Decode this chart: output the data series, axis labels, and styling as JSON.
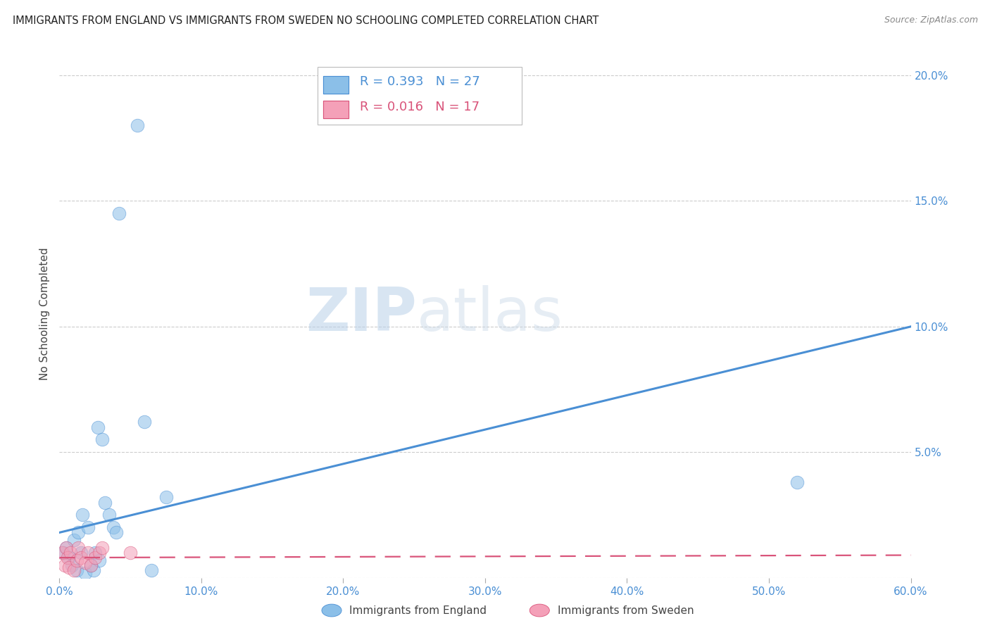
{
  "title": "IMMIGRANTS FROM ENGLAND VS IMMIGRANTS FROM SWEDEN NO SCHOOLING COMPLETED CORRELATION CHART",
  "source": "Source: ZipAtlas.com",
  "ylabel": "No Schooling Completed",
  "xlim": [
    0,
    0.6
  ],
  "ylim": [
    0,
    0.21
  ],
  "xticks": [
    0.0,
    0.1,
    0.2,
    0.3,
    0.4,
    0.5,
    0.6
  ],
  "xticklabels": [
    "0.0%",
    "10.0%",
    "20.0%",
    "30.0%",
    "40.0%",
    "50.0%",
    "60.0%"
  ],
  "ytick_positions": [
    0.0,
    0.05,
    0.1,
    0.15,
    0.2
  ],
  "ytick_labels_right": [
    "",
    "5.0%",
    "10.0%",
    "15.0%",
    "20.0%"
  ],
  "background_color": "#ffffff",
  "watermark_text": "ZIPatlas",
  "england_color": "#8BBFE8",
  "england_color_dark": "#4A8FD4",
  "sweden_color": "#F4A0B8",
  "sweden_color_dark": "#D9547A",
  "england_R": "0.393",
  "england_N": "27",
  "sweden_R": "0.016",
  "sweden_N": "17",
  "england_x": [
    0.003,
    0.005,
    0.007,
    0.009,
    0.01,
    0.012,
    0.013,
    0.015,
    0.016,
    0.018,
    0.02,
    0.022,
    0.024,
    0.025,
    0.027,
    0.028,
    0.03,
    0.032,
    0.035,
    0.038,
    0.04,
    0.042,
    0.055,
    0.06,
    0.065,
    0.075,
    0.52
  ],
  "england_y": [
    0.01,
    0.012,
    0.008,
    0.005,
    0.015,
    0.003,
    0.018,
    0.01,
    0.025,
    0.002,
    0.02,
    0.005,
    0.003,
    0.01,
    0.06,
    0.007,
    0.055,
    0.03,
    0.025,
    0.02,
    0.018,
    0.145,
    0.18,
    0.062,
    0.003,
    0.032,
    0.038
  ],
  "sweden_x": [
    0.002,
    0.004,
    0.005,
    0.006,
    0.007,
    0.008,
    0.01,
    0.012,
    0.013,
    0.015,
    0.018,
    0.02,
    0.022,
    0.025,
    0.028,
    0.03,
    0.05
  ],
  "sweden_y": [
    0.01,
    0.005,
    0.012,
    0.008,
    0.004,
    0.01,
    0.003,
    0.007,
    0.012,
    0.008,
    0.006,
    0.01,
    0.005,
    0.008,
    0.01,
    0.012,
    0.01
  ],
  "england_line_x": [
    0.0,
    0.6
  ],
  "england_line_y": [
    0.018,
    0.1
  ],
  "sweden_line_x": [
    0.0,
    0.6
  ],
  "sweden_line_y": [
    0.008,
    0.009
  ],
  "marker_size": 180,
  "marker_alpha": 0.55,
  "tick_color": "#4A8FD4",
  "label_color": "#4A8FD4",
  "grid_color": "#CCCCCC"
}
